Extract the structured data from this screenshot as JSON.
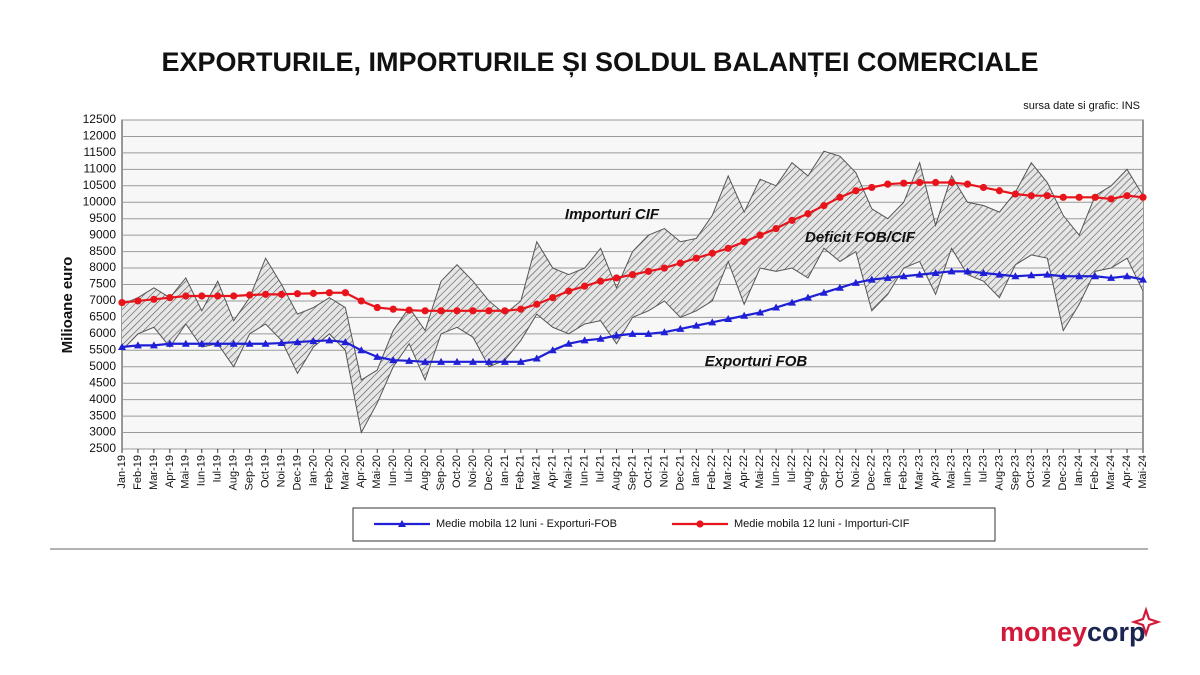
{
  "chart_data": {
    "type": "line",
    "title": "EXPORTURILE, IMPORTURILE ȘI SOLDUL BALANȚEI COMERCIALE",
    "source": "sursa date si grafic:  INS",
    "y_label": "Milioane  euro",
    "annotations": [
      "Importuri CIF",
      "Deficit FOB/CIF",
      "Exporturi FOB"
    ],
    "categories": [
      "Jan-19",
      "Feb-19",
      "Mar-19",
      "Apr-19",
      "Mai-19",
      "Iun-19",
      "Iul-19",
      "Aug-19",
      "Sep-19",
      "Oct-19",
      "Noi-19",
      "Dec-19",
      "Ian-20",
      "Feb-20",
      "Mar-20",
      "Apr-20",
      "Mai-20",
      "Iun-20",
      "Iul-20",
      "Aug-20",
      "Sep-20",
      "Oct-20",
      "Noi-20",
      "Dec-20",
      "Ian-21",
      "Feb-21",
      "Mar-21",
      "Apr-21",
      "Mai-21",
      "Iun-21",
      "Iul-21",
      "Aug-21",
      "Sep-21",
      "Oct-21",
      "Noi-21",
      "Dec-21",
      "Ian-22",
      "Feb-22",
      "Mar-22",
      "Apr-22",
      "Mai-22",
      "Iun-22",
      "Iul-22",
      "Aug-22",
      "Sep-22",
      "Oct-22",
      "Noi-22",
      "Dec-22",
      "Ian-23",
      "Feb-23",
      "Mar-23",
      "Apr-23",
      "Mai-23",
      "Iun-23",
      "Iul-23",
      "Aug-23",
      "Sep-23",
      "Oct-23",
      "Noi-23",
      "Dec-23",
      "Ian-24",
      "Feb-24",
      "Mar-24",
      "Apr-24",
      "Mai-24"
    ],
    "series": [
      {
        "name": "Medie mobila 12 luni - Exporturi-FOB",
        "color": "#1f1fd6",
        "marker": "triangle",
        "values": [
          5600,
          5650,
          5650,
          5700,
          5700,
          5700,
          5700,
          5700,
          5700,
          5700,
          5720,
          5750,
          5780,
          5800,
          5750,
          5500,
          5300,
          5200,
          5180,
          5150,
          5150,
          5150,
          5150,
          5150,
          5150,
          5150,
          5250,
          5500,
          5700,
          5800,
          5850,
          5950,
          6000,
          6000,
          6050,
          6150,
          6250,
          6350,
          6450,
          6550,
          6650,
          6800,
          6950,
          7100,
          7250,
          7400,
          7550,
          7650,
          7700,
          7750,
          7800,
          7850,
          7900,
          7900,
          7850,
          7800,
          7750,
          7780,
          7800,
          7750,
          7750,
          7750,
          7700,
          7750,
          7650
        ]
      },
      {
        "name": "Medie mobila 12 luni - Importuri-CIF",
        "color": "#e8141c",
        "marker": "circle",
        "values": [
          6950,
          7000,
          7050,
          7100,
          7150,
          7150,
          7150,
          7150,
          7180,
          7200,
          7200,
          7220,
          7230,
          7250,
          7250,
          7000,
          6800,
          6750,
          6720,
          6700,
          6700,
          6700,
          6700,
          6700,
          6700,
          6750,
          6900,
          7100,
          7300,
          7450,
          7600,
          7700,
          7800,
          7900,
          8000,
          8150,
          8300,
          8450,
          8600,
          8800,
          9000,
          9200,
          9450,
          9650,
          9900,
          10150,
          10350,
          10450,
          10550,
          10580,
          10600,
          10600,
          10600,
          10550,
          10450,
          10350,
          10250,
          10200,
          10200,
          10150,
          10150,
          10150,
          10100,
          10200,
          10150
        ]
      }
    ],
    "band": {
      "upper": [
        6900,
        7100,
        7400,
        7100,
        7700,
        6700,
        7600,
        6400,
        7100,
        8300,
        7500,
        6600,
        6800,
        7100,
        6800,
        4600,
        4900,
        6100,
        6800,
        6100,
        7600,
        8100,
        7600,
        7000,
        6600,
        7000,
        8800,
        8000,
        7800,
        8000,
        8600,
        7400,
        8500,
        9000,
        9200,
        8800,
        8900,
        9600,
        10800,
        9700,
        10700,
        10500,
        11200,
        10800,
        11550,
        11400,
        10900,
        9800,
        9500,
        10000,
        11200,
        9300,
        10800,
        10000,
        9900,
        9700,
        10300,
        11200,
        10600,
        9600,
        9000,
        10200,
        10500,
        11000,
        10200
      ],
      "lower": [
        5500,
        6000,
        6200,
        5600,
        6300,
        5600,
        5700,
        5000,
        6000,
        6300,
        5800,
        4800,
        5600,
        6000,
        5500,
        3000,
        3900,
        5000,
        5700,
        4600,
        6000,
        6200,
        5900,
        5000,
        5200,
        5800,
        6600,
        6200,
        6000,
        6300,
        6400,
        5700,
        6500,
        6700,
        7000,
        6500,
        6700,
        7000,
        8200,
        6900,
        8000,
        7900,
        8000,
        7700,
        8600,
        8200,
        8500,
        6700,
        7200,
        8000,
        8200,
        7200,
        8600,
        7800,
        7600,
        7100,
        8100,
        8400,
        8300,
        6100,
        6900,
        7900,
        8000,
        8300,
        7300
      ],
      "color": "#555555"
    },
    "ylim": [
      2500,
      12500
    ],
    "yticks": [
      2500,
      3000,
      3500,
      4000,
      4500,
      5000,
      5500,
      6000,
      6500,
      7000,
      7500,
      8000,
      8500,
      9000,
      9500,
      10000,
      10500,
      11000,
      11500,
      12000,
      12500
    ],
    "grid": true
  },
  "brand": {
    "parts": [
      "money",
      "corp"
    ]
  }
}
